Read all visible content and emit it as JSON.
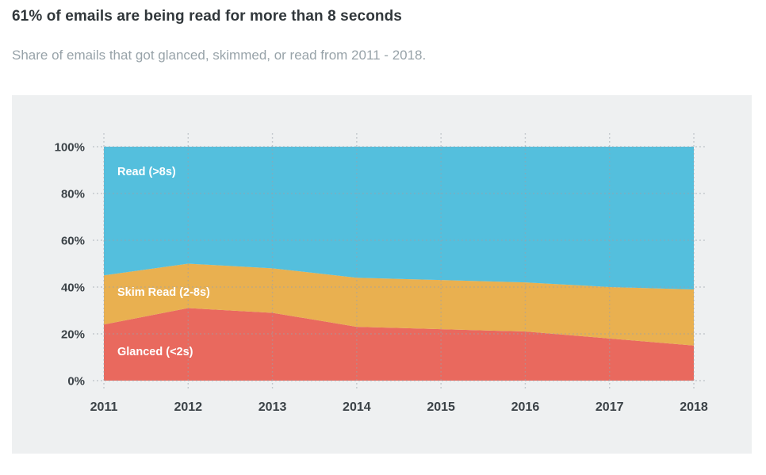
{
  "page": {
    "title": "61% of emails are being read for more than 8 seconds",
    "subtitle": "Share of emails that got glanced, skimmed, or read from 2011 - 2018."
  },
  "colors": {
    "page_bg": "#ffffff",
    "panel_bg": "#eef0f1",
    "title": "#31373b",
    "subtitle": "#98a3a9",
    "axis_label": "#3b4247",
    "gridline": "#9aa3a9",
    "series_label_text": "#ffffff"
  },
  "chart_data": {
    "type": "area",
    "stacked": true,
    "title": "61% of emails are being read for more than 8 seconds",
    "subtitle": "Share of emails that got glanced, skimmed, or read from 2011 - 2018.",
    "x": [
      2011,
      2012,
      2013,
      2014,
      2015,
      2016,
      2017,
      2018
    ],
    "xlabel": "",
    "ylabel": "",
    "ylim": [
      0,
      100
    ],
    "ytick_values": [
      0,
      20,
      40,
      60,
      80,
      100
    ],
    "ytick_labels": [
      "0%",
      "20%",
      "40%",
      "60%",
      "80%",
      "100%"
    ],
    "grid": true,
    "grid_style": "dotted",
    "legend_position": "inline-labels",
    "series": [
      {
        "name": "Glanced (<2s)",
        "color": "#e9695e",
        "values": [
          24,
          31,
          29,
          23,
          22,
          21,
          18,
          15
        ]
      },
      {
        "name": "Skim Read (2-8s)",
        "color": "#e9b050",
        "values": [
          21,
          19,
          19,
          21,
          21,
          21,
          22,
          24
        ]
      },
      {
        "name": "Read (>8s)",
        "color": "#54bfdd",
        "values": [
          55,
          50,
          52,
          56,
          57,
          58,
          60,
          61
        ]
      }
    ]
  }
}
